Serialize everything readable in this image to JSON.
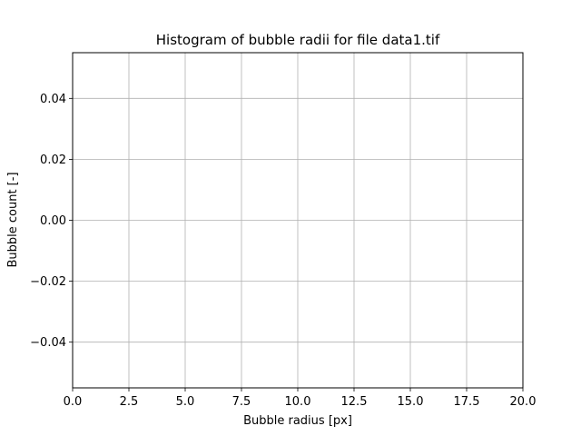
{
  "chart_data": {
    "type": "bar",
    "title": "Histogram of bubble radii for file data1.tif",
    "xlabel": "Bubble radius [px]",
    "ylabel": "Bubble count [-]",
    "xlim": [
      0,
      20
    ],
    "ylim": [
      -0.055,
      0.055
    ],
    "xticks": [
      0,
      2.5,
      5,
      7.5,
      10,
      12.5,
      15,
      17.5,
      20
    ],
    "xtick_labels": [
      "0.0",
      "2.5",
      "5.0",
      "7.5",
      "10.0",
      "12.5",
      "15.0",
      "17.5",
      "20.0"
    ],
    "yticks": [
      -0.04,
      -0.02,
      0,
      0.02,
      0.04
    ],
    "ytick_labels": [
      "−0.04",
      "−0.02",
      "0.00",
      "0.02",
      "0.04"
    ],
    "grid": true,
    "values": [],
    "colors": {
      "grid": "#b0b0b0",
      "axes": "#000000"
    }
  }
}
